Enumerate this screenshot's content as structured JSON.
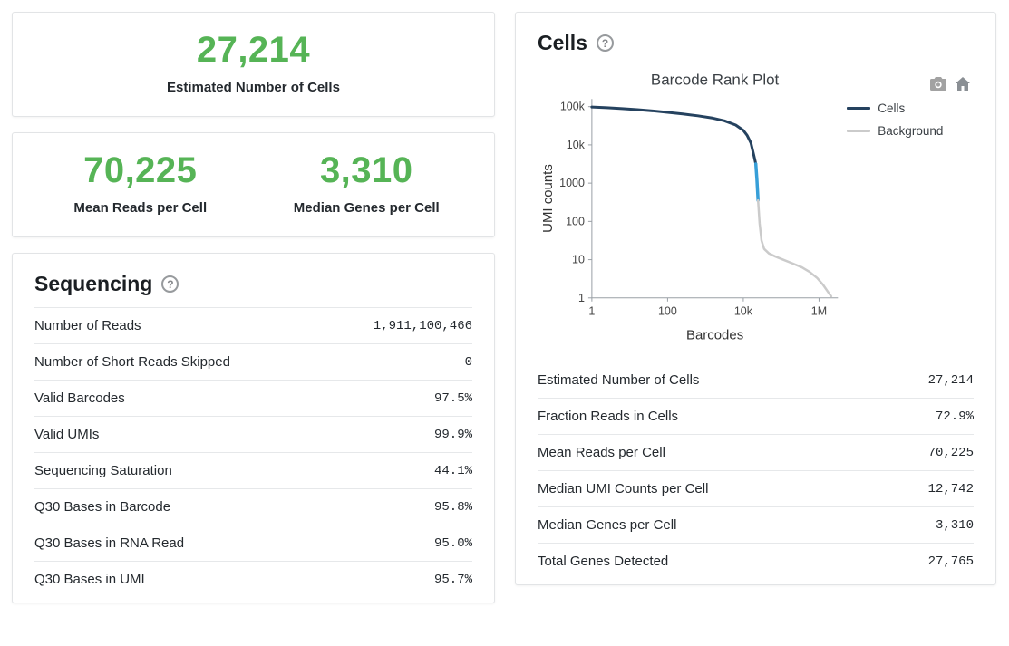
{
  "colors": {
    "accent_green": "#56b456",
    "cells_line": "#25425f",
    "transition_line": "#379fd8",
    "background_line": "#cbcbcb"
  },
  "glyphs": {
    "help": "?"
  },
  "summary_cards": {
    "estimated_cells": {
      "value": "27,214",
      "label": "Estimated Number of Cells"
    },
    "mean_reads": {
      "value": "70,225",
      "label": "Mean Reads per Cell"
    },
    "median_genes": {
      "value": "3,310",
      "label": "Median Genes per Cell"
    }
  },
  "sequencing": {
    "title": "Sequencing",
    "rows": [
      {
        "label": "Number of Reads",
        "value": "1,911,100,466"
      },
      {
        "label": "Number of Short Reads Skipped",
        "value": "0"
      },
      {
        "label": "Valid Barcodes",
        "value": "97.5%"
      },
      {
        "label": "Valid UMIs",
        "value": "99.9%"
      },
      {
        "label": "Sequencing Saturation",
        "value": "44.1%"
      },
      {
        "label": "Q30 Bases in Barcode",
        "value": "95.8%"
      },
      {
        "label": "Q30 Bases in RNA Read",
        "value": "95.0%"
      },
      {
        "label": "Q30 Bases in UMI",
        "value": "95.7%"
      }
    ]
  },
  "cells": {
    "title": "Cells",
    "rows": [
      {
        "label": "Estimated Number of Cells",
        "value": "27,214"
      },
      {
        "label": "Fraction Reads in Cells",
        "value": "72.9%"
      },
      {
        "label": "Mean Reads per Cell",
        "value": "70,225"
      },
      {
        "label": "Median UMI Counts per Cell",
        "value": "12,742"
      },
      {
        "label": "Median Genes per Cell",
        "value": "3,310"
      },
      {
        "label": "Total Genes Detected",
        "value": "27,765"
      }
    ]
  },
  "chart_data": {
    "type": "line",
    "title": "Barcode Rank Plot",
    "xlabel": "Barcodes",
    "ylabel": "UMI counts",
    "x_scale": "log",
    "y_scale": "log",
    "x_log_range": [
      0,
      6.5
    ],
    "y_log_range": [
      0,
      5.2
    ],
    "grid": false,
    "legend_position": "right",
    "x_ticks": [
      {
        "label": "1",
        "log": 0
      },
      {
        "label": "100",
        "log": 2
      },
      {
        "label": "10k",
        "log": 4
      },
      {
        "label": "1M",
        "log": 6
      }
    ],
    "y_ticks": [
      {
        "label": "1",
        "log": 0
      },
      {
        "label": "10",
        "log": 1
      },
      {
        "label": "100",
        "log": 2
      },
      {
        "label": "1000",
        "log": 3
      },
      {
        "label": "10k",
        "log": 4
      },
      {
        "label": "100k",
        "log": 5
      }
    ],
    "legend": [
      {
        "label": "Cells",
        "color": "#25425f"
      },
      {
        "label": "Background",
        "color": "#cbcbcb"
      }
    ],
    "series": [
      {
        "name": "Cells",
        "color": "#25425f",
        "width": 3,
        "points_log": [
          [
            0,
            4.99
          ],
          [
            0.4,
            4.97
          ],
          [
            0.8,
            4.95
          ],
          [
            1.2,
            4.92
          ],
          [
            1.6,
            4.89
          ],
          [
            2.0,
            4.85
          ],
          [
            2.4,
            4.81
          ],
          [
            2.8,
            4.76
          ],
          [
            3.2,
            4.7
          ],
          [
            3.5,
            4.63
          ],
          [
            3.8,
            4.52
          ],
          [
            4.0,
            4.38
          ],
          [
            4.1,
            4.25
          ],
          [
            4.2,
            4.05
          ],
          [
            4.28,
            3.72
          ],
          [
            4.33,
            3.5
          ]
        ]
      },
      {
        "name": "Cells-Background transition",
        "color": "#379fd8",
        "width": 3.5,
        "points_log": [
          [
            4.33,
            3.5
          ],
          [
            4.36,
            3.1
          ],
          [
            4.39,
            2.55
          ]
        ]
      },
      {
        "name": "Background",
        "color": "#cbcbcb",
        "width": 2.5,
        "points_log": [
          [
            4.39,
            2.55
          ],
          [
            4.43,
            1.95
          ],
          [
            4.48,
            1.5
          ],
          [
            4.55,
            1.28
          ],
          [
            4.68,
            1.16
          ],
          [
            4.85,
            1.08
          ],
          [
            5.05,
            1.0
          ],
          [
            5.3,
            0.9
          ],
          [
            5.55,
            0.8
          ],
          [
            5.75,
            0.68
          ],
          [
            5.95,
            0.52
          ],
          [
            6.1,
            0.35
          ],
          [
            6.22,
            0.18
          ],
          [
            6.32,
            0.04
          ]
        ]
      }
    ]
  }
}
